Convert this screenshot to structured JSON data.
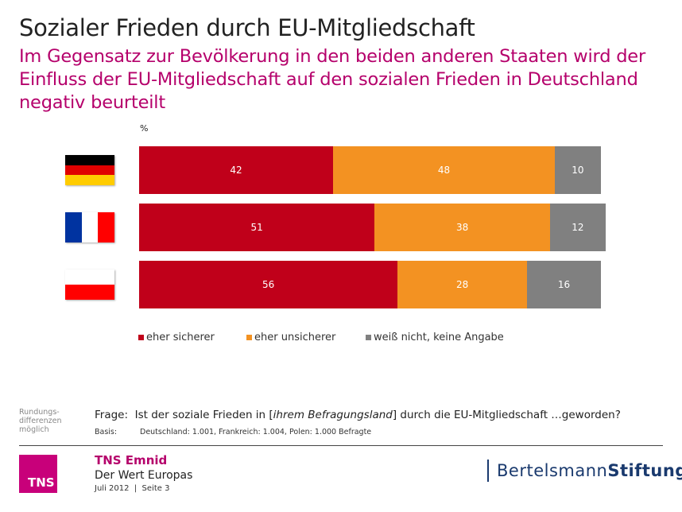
{
  "title": "Sozialer Frieden durch EU-Mitgliedschaft",
  "subtitle": "Im Gegensatz zur Bevölkerung in den beiden anderen Staaten wird der Einfluss der EU-Mitgliedschaft auf den sozialen Frieden in Deutschland negativ beurteilt",
  "chart_data": {
    "type": "bar",
    "orientation": "horizontal-stacked",
    "unit_label": "%",
    "categories": [
      "Germany flag",
      "France flag",
      "Poland flag"
    ],
    "series": [
      {
        "name": "eher sicherer",
        "values": [
          42,
          51,
          56
        ],
        "color": "#c0001a"
      },
      {
        "name": "eher unsicherer",
        "values": [
          48,
          38,
          28
        ],
        "color": "#f39222"
      },
      {
        "name": "weiß nicht, keine Angabe",
        "values": [
          10,
          12,
          16
        ],
        "color": "#808080"
      }
    ],
    "xlim": [
      0,
      100
    ],
    "legend": "bottom"
  },
  "flags": [
    {
      "icon": "germany-flag",
      "colors": [
        "#000000",
        "#e00000",
        "#ffcc00"
      ]
    },
    {
      "icon": "france-flag",
      "colors": [
        "#0033a0",
        "#ffffff",
        "#ff0000"
      ]
    },
    {
      "icon": "poland-flag",
      "colors": [
        "#ffffff",
        "#ff0000"
      ]
    }
  ],
  "footer": {
    "note": "Rundungs-differenzen möglich",
    "frage_label": "Frage:",
    "frage_pre": "Ist der soziale Frieden in [",
    "frage_italic": "ihrem Befragungsland",
    "frage_post": "] durch die EU-Mitgliedschaft …geworden?",
    "basis_label": "Basis:",
    "basis_text": "Deutschland: 1.001, Frankreich: 1.004, Polen: 1.000 Befragte",
    "tns_logo": "TNS",
    "org": "TNS Emnid",
    "study": "Der Wert Europas",
    "date": "Juli 2012  |  Seite 3",
    "bertelsmann_a": "Bertelsmann",
    "bertelsmann_b": "Stiftung"
  }
}
